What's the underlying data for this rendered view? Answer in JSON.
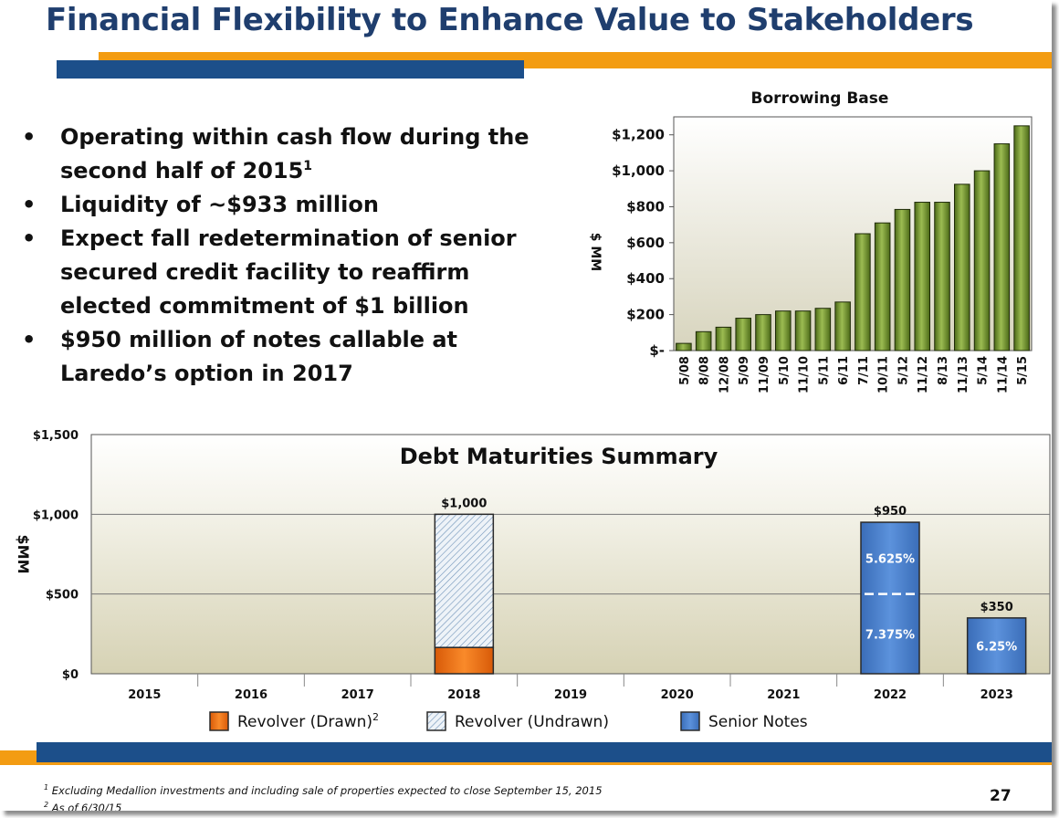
{
  "slide": {
    "title": "Financial Flexibility to Enhance Value to Stakeholders",
    "page_number": "27",
    "colors": {
      "title": "#1f3e6e",
      "accent_orange": "#f39c12",
      "accent_blue": "#1c4f8a",
      "bar_green": "#6e8f2a",
      "bar_blue": "#4a7fc9",
      "bar_orange": "#ee6f12"
    }
  },
  "bullets": [
    {
      "text": "Operating within cash flow during the second half of 2015",
      "sup": "1"
    },
    {
      "text": "Liquidity of ~$933 million",
      "sup": ""
    },
    {
      "text": "Expect fall redetermination of senior secured credit facility to reaffirm elected commitment of $1 billion",
      "sup": ""
    },
    {
      "text": "$950 million of notes callable at Laredo’s option in 2017",
      "sup": ""
    }
  ],
  "footnotes": [
    {
      "num": "1",
      "text": "Excluding Medallion investments and including sale of properties expected to close September 15, 2015"
    },
    {
      "num": "2",
      "text": "As of 6/30/15"
    }
  ],
  "chart_data": [
    {
      "type": "bar",
      "title": "Borrowing Base",
      "ylabel": "$ MM",
      "ylim": [
        0,
        1300
      ],
      "y_ticks": [
        0,
        200,
        400,
        600,
        800,
        1000,
        1200
      ],
      "y_tick_labels": [
        "$-",
        "$200",
        "$400",
        "$600",
        "$800",
        "$1,000",
        "$1,200"
      ],
      "categories": [
        "5/08",
        "8/08",
        "12/08",
        "5/09",
        "11/09",
        "5/10",
        "11/10",
        "5/11",
        "6/11",
        "7/11",
        "10/11",
        "5/12",
        "11/12",
        "8/13",
        "11/13",
        "5/14",
        "11/14",
        "5/15"
      ],
      "values": [
        40,
        105,
        130,
        180,
        200,
        220,
        220,
        235,
        270,
        650,
        710,
        785,
        825,
        825,
        925,
        1000,
        1150,
        1250
      ],
      "grid": false,
      "legend": "none"
    },
    {
      "type": "bar",
      "title": "Debt Maturities Summary",
      "ylabel": "$MM",
      "ylim": [
        0,
        1500
      ],
      "y_ticks": [
        0,
        500,
        1000,
        1500
      ],
      "y_tick_labels": [
        "$0",
        "$500",
        "$1,000",
        "$1,500"
      ],
      "categories": [
        "2015",
        "2016",
        "2017",
        "2018",
        "2019",
        "2020",
        "2021",
        "2022",
        "2023"
      ],
      "stacked": true,
      "series": [
        {
          "name": "Revolver (Drawn)",
          "legend_sup": "2",
          "values": [
            0,
            0,
            0,
            165,
            0,
            0,
            0,
            0,
            0
          ],
          "color": "#ee6f12"
        },
        {
          "name": "Revolver (Undrawn)",
          "legend_sup": "",
          "values": [
            0,
            0,
            0,
            835,
            0,
            0,
            0,
            0,
            0
          ],
          "color": "#d6e2ee"
        },
        {
          "name": "Senior Notes",
          "legend_sup": "",
          "values": [
            0,
            0,
            0,
            0,
            0,
            0,
            0,
            950,
            350
          ],
          "color": "#4a7fc9"
        }
      ],
      "bar_totals": [
        {
          "category": "2018",
          "value": 1000,
          "label": "$1,000"
        },
        {
          "category": "2022",
          "value": 950,
          "label": "$950"
        },
        {
          "category": "2023",
          "value": 350,
          "label": "$350"
        }
      ],
      "senior_note_tranches": [
        {
          "category": "2022",
          "value": 500,
          "label": "7.375%"
        },
        {
          "category": "2022",
          "value": 450,
          "label": "5.625%"
        },
        {
          "category": "2023",
          "value": 350,
          "label": "6.25%"
        }
      ],
      "grid": true,
      "legend": "bottom"
    }
  ]
}
